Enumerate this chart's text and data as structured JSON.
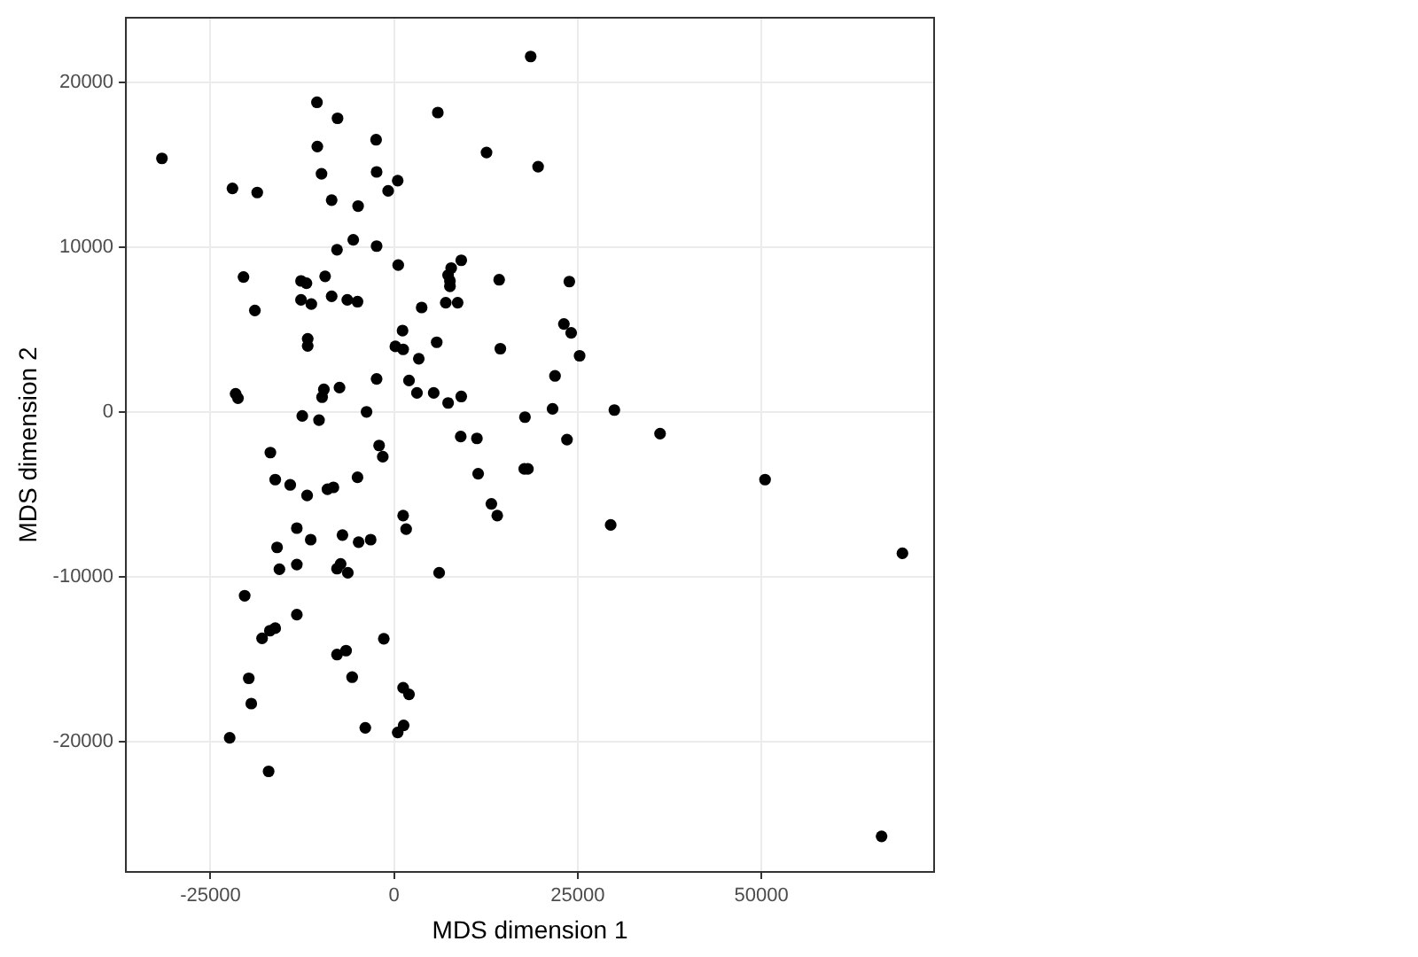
{
  "chart_data": {
    "type": "scatter",
    "xlabel": "MDS dimension 1",
    "ylabel": "MDS dimension 2",
    "xlim": [
      -36500,
      73500
    ],
    "ylim": [
      -27900,
      23900
    ],
    "xticks": [
      -25000,
      0,
      25000,
      50000
    ],
    "yticks": [
      -20000,
      -10000,
      0,
      10000,
      20000
    ],
    "grid": true,
    "marker": "circle",
    "series": [
      {
        "color": "#000000",
        "x": [
          18590,
          -10500,
          -7700,
          5950,
          -2450,
          -10450,
          -31600,
          12580,
          19600,
          -9880,
          -2380,
          490,
          -810,
          -22000,
          -18630,
          -8500,
          -4900,
          -5560,
          -7770,
          -2380,
          560,
          9140,
          7770,
          7350,
          7600,
          7600,
          14300,
          23850,
          -20500,
          -12670,
          -11930,
          -9390,
          -12670,
          -11270,
          -8500,
          -6370,
          -4980,
          -18950,
          7030,
          8650,
          3750,
          1150,
          170,
          1230,
          5800,
          3360,
          23110,
          24100,
          25250,
          14460,
          21900,
          -11760,
          -11760,
          -2380,
          2030,
          -21570,
          -21250,
          -9560,
          -9800,
          -7430,
          3110,
          5390,
          7350,
          9140,
          -12500,
          -10220,
          -3750,
          17810,
          21570,
          29980,
          9070,
          11270,
          23530,
          36200,
          -16840,
          -2040,
          -1540,
          -16180,
          -14140,
          -11840,
          -9070,
          -8260,
          -4980,
          1230,
          1640,
          -13240,
          -11350,
          -15930,
          -7030,
          -4830,
          -3190,
          -15610,
          -13240,
          -7770,
          -7280,
          -6300,
          -20340,
          -13240,
          -17970,
          -16910,
          -16180,
          -7770,
          -6540,
          -1400,
          -5710,
          -19780,
          -19440,
          1230,
          2030,
          -22380,
          -3920,
          490,
          1300,
          -17080,
          11440,
          17720,
          18210,
          13240,
          14040,
          29480,
          6130,
          50490,
          69190,
          66350
        ],
        "values": [
          21550,
          18770,
          17800,
          18150,
          16500,
          16090,
          15370,
          15730,
          14870,
          14440,
          14550,
          14020,
          13400,
          13550,
          13300,
          12840,
          12480,
          10430,
          9830,
          10050,
          8900,
          9190,
          8720,
          8290,
          7940,
          7610,
          8010,
          7900,
          8180,
          7940,
          7800,
          8220,
          6790,
          6540,
          7010,
          6790,
          6680,
          6150,
          6620,
          6620,
          6330,
          4930,
          3970,
          3790,
          4220,
          3220,
          5330,
          4790,
          3400,
          3830,
          2180,
          4430,
          4000,
          2000,
          1900,
          1100,
          830,
          1360,
          890,
          1470,
          1150,
          1150,
          540,
          930,
          -250,
          -500,
          0,
          -320,
          180,
          110,
          -1500,
          -1610,
          -1680,
          -1320,
          -2470,
          -2040,
          -2720,
          -4110,
          -4430,
          -5070,
          -4690,
          -4580,
          -3970,
          -6290,
          -7110,
          -7050,
          -7750,
          -8220,
          -7470,
          -7900,
          -7750,
          -9540,
          -9260,
          -9510,
          -9220,
          -9760,
          -11150,
          -12300,
          -13730,
          -13270,
          -13120,
          -14720,
          -14480,
          -13760,
          -16090,
          -16160,
          -17690,
          -16730,
          -17130,
          -19770,
          -19160,
          -19440,
          -19010,
          -21800,
          -3750,
          -3460,
          -3460,
          -5580,
          -6290,
          -6860,
          -9760,
          -4110,
          -8580,
          -25740
        ]
      }
    ]
  }
}
